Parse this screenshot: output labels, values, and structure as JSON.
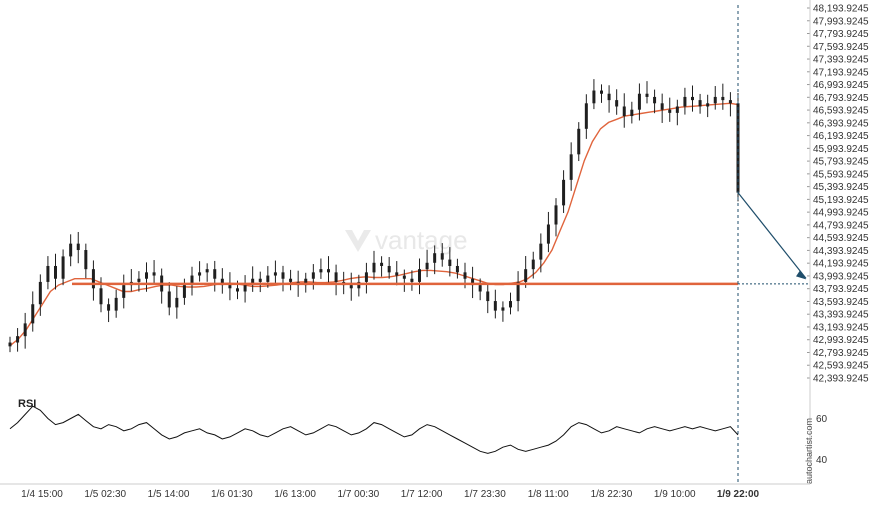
{
  "chart_data": {
    "type": "candlestick",
    "price_axis": {
      "ticks": [
        "48,193.9245",
        "47,993.9245",
        "47,793.9245",
        "47,593.9245",
        "47,393.9245",
        "47,193.9245",
        "46,993.9245",
        "46,793.9245",
        "46,593.9245",
        "46,393.9245",
        "46,193.9245",
        "45,993.9245",
        "45,793.9245",
        "45,593.9245",
        "45,393.9245",
        "45,193.9245",
        "44,993.9245",
        "44,793.9245",
        "44,593.9245",
        "44,393.9245",
        "44,193.9245",
        "43,993.9245",
        "43,793.9245",
        "43,593.9245",
        "43,393.9245",
        "43,193.9245",
        "42,993.9245",
        "42,793.9245",
        "42,593.9245",
        "42,393.9245"
      ],
      "min": 42393.9245,
      "max": 48193.9245
    },
    "time_axis": {
      "ticks": [
        "1/4 15:00",
        "1/5 02:30",
        "1/5 14:00",
        "1/6 01:30",
        "1/6 13:00",
        "1/7 00:30",
        "1/7 12:00",
        "1/7 23:30",
        "1/8 11:00",
        "1/8 22:30",
        "1/9 10:00",
        "1/9 22:00"
      ],
      "highlighted": "1/9 22:00"
    },
    "support_level": 43870,
    "close_price": 45300,
    "projection_target": 43940,
    "price_series": [
      42950,
      43050,
      43250,
      43550,
      43900,
      44150,
      43950,
      44300,
      44500,
      44400,
      44100,
      43800,
      43550,
      43450,
      43650,
      43850,
      43900,
      43950,
      44050,
      44000,
      43750,
      43500,
      43650,
      43850,
      44000,
      44050,
      44100,
      43950,
      43850,
      43800,
      43750,
      43850,
      43950,
      43900,
      44000,
      44050,
      43950,
      43900,
      43850,
      43950,
      44050,
      44100,
      44050,
      43900,
      43850,
      43800,
      43900,
      44050,
      44200,
      44150,
      44050,
      44000,
      43950,
      43900,
      44100,
      44200,
      44350,
      44250,
      44150,
      44050,
      43950,
      43850,
      43750,
      43600,
      43450,
      43500,
      43600,
      43900,
      44100,
      44250,
      44500,
      44800,
      45100,
      45500,
      45900,
      46300,
      46700,
      46900,
      46850,
      46750,
      46650,
      46500,
      46600,
      46850,
      46800,
      46700,
      46600,
      46550,
      46650,
      46800,
      46750,
      46650,
      46700,
      46800,
      46750,
      46700,
      45300
    ],
    "ma_series": [
      42900,
      43000,
      43150,
      43350,
      43550,
      43750,
      43850,
      43900,
      43950,
      43950,
      43950,
      43900,
      43850,
      43800,
      43750,
      43750,
      43780,
      43800,
      43830,
      43850,
      43850,
      43830,
      43820,
      43820,
      43830,
      43850,
      43870,
      43880,
      43870,
      43850,
      43830,
      43830,
      43840,
      43850,
      43870,
      43890,
      43900,
      43900,
      43890,
      43890,
      43900,
      43920,
      43950,
      43970,
      43980,
      43970,
      43970,
      43980,
      44000,
      44030,
      44060,
      44080,
      44080,
      44070,
      44060,
      44040,
      44000,
      43960,
      43920,
      43880,
      43860,
      43860,
      43880,
      43900,
      43950,
      44050,
      44200,
      44400,
      44700,
      45000,
      45400,
      45800,
      46100,
      46300,
      46400,
      46450,
      46500,
      46520,
      46540,
      46560,
      46580,
      46600,
      46620,
      46640,
      46650,
      46660,
      46670,
      46680,
      46690,
      46700,
      46680
    ],
    "rsi": {
      "title": "RSI",
      "ticks": [
        "60",
        "40"
      ],
      "min": 30,
      "max": 70,
      "values": [
        55,
        58,
        62,
        66,
        64,
        60,
        57,
        58,
        60,
        62,
        59,
        56,
        55,
        57,
        56,
        54,
        55,
        57,
        58,
        55,
        52,
        50,
        51,
        53,
        54,
        55,
        53,
        52,
        50,
        51,
        53,
        55,
        54,
        52,
        51,
        53,
        55,
        56,
        54,
        52,
        53,
        55,
        57,
        56,
        54,
        52,
        53,
        55,
        58,
        57,
        55,
        53,
        51,
        52,
        55,
        57,
        56,
        54,
        52,
        50,
        48,
        46,
        44,
        43,
        44,
        46,
        47,
        45,
        44,
        45,
        46,
        47,
        49,
        52,
        56,
        58,
        57,
        55,
        53,
        54,
        56,
        55,
        54,
        53,
        55,
        56,
        55,
        54,
        55,
        56,
        55,
        56,
        55,
        54,
        55,
        56,
        52
      ]
    },
    "brand": "autochartist.com",
    "watermark": "vantage"
  },
  "colors": {
    "candle": "#1f1f1f",
    "ma": "#e0643c",
    "support": "#e0643c",
    "projection": "#1f4e6b",
    "rsi_line": "#111111",
    "grid_axis": "#cccccc"
  }
}
